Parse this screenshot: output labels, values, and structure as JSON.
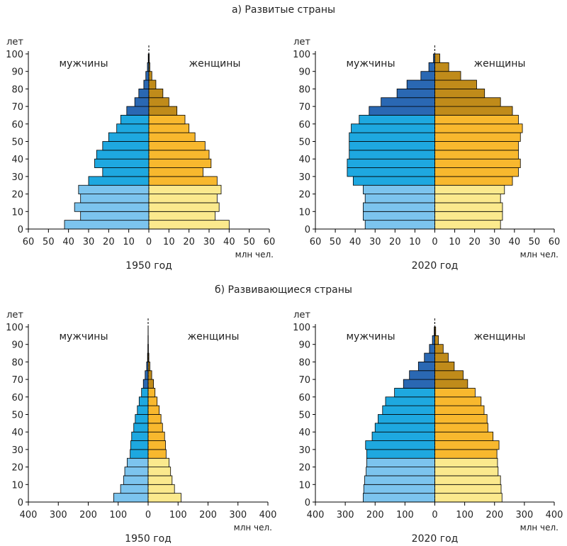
{
  "page": {
    "title_developed": "а) Развитые страны",
    "title_developing": "б) Развивающиеся страны"
  },
  "colors": {
    "male_young": "#7cc4ee",
    "male_adult": "#1ea8e0",
    "male_old": "#2a68b3",
    "female_young": "#fbe98d",
    "female_adult": "#f8b82e",
    "female_old": "#c08b1a"
  },
  "chart_data": [
    {
      "type": "bar",
      "id": "developed-1950",
      "group": "а) Развитые страны",
      "year_label": "1950 год",
      "unit_label": "млн чел.",
      "y_axis_label": "лет",
      "male_label": "мужчины",
      "female_label": "женщины",
      "xlim": [
        -60,
        60
      ],
      "x_ticks": [
        -60,
        -50,
        -40,
        -30,
        -20,
        -10,
        0,
        10,
        20,
        30,
        40,
        50,
        60
      ],
      "x_tick_labels": [
        "60",
        "50",
        "40",
        "30",
        "20",
        "10",
        "0",
        "10",
        "20",
        "30",
        "40",
        "50",
        "60"
      ],
      "y_ticks": [
        0,
        10,
        20,
        30,
        40,
        50,
        60,
        70,
        80,
        90,
        100
      ],
      "y_tick_labels": [
        "0",
        "10",
        "20",
        "30",
        "40",
        "50",
        "60",
        "70",
        "80",
        "90",
        "100"
      ],
      "age_groups": [
        "0-4",
        "5-9",
        "10-14",
        "15-19",
        "20-24",
        "25-29",
        "30-34",
        "35-39",
        "40-44",
        "45-49",
        "50-54",
        "55-59",
        "60-64",
        "65-69",
        "70-74",
        "75-79",
        "80-84",
        "85-89",
        "90-94",
        "95-99"
      ],
      "series": [
        {
          "name": "мужчины",
          "values": [
            42,
            34,
            37,
            34,
            35,
            30,
            23,
            27,
            26,
            23,
            20,
            16,
            14,
            11,
            7,
            5,
            2.5,
            1.5,
            0.7,
            0.3
          ]
        },
        {
          "name": "женщины",
          "values": [
            40,
            33,
            35,
            34,
            36,
            34,
            27,
            31,
            30,
            28,
            23,
            20,
            18,
            14,
            10,
            7,
            3.5,
            1.5,
            0.5,
            0.2
          ]
        }
      ]
    },
    {
      "type": "bar",
      "id": "developed-2020",
      "group": "а) Развитые страны",
      "year_label": "2020 год",
      "unit_label": "млн чел.",
      "y_axis_label": "лет",
      "male_label": "мужчины",
      "female_label": "женщины",
      "xlim": [
        -60,
        60
      ],
      "x_ticks": [
        -60,
        -50,
        -40,
        -30,
        -20,
        -10,
        0,
        10,
        20,
        30,
        40,
        50,
        60
      ],
      "x_tick_labels": [
        "60",
        "50",
        "40",
        "30",
        "20",
        "10",
        "0",
        "10",
        "20",
        "30",
        "40",
        "50",
        "60"
      ],
      "y_ticks": [
        0,
        10,
        20,
        30,
        40,
        50,
        60,
        70,
        80,
        90,
        100
      ],
      "y_tick_labels": [
        "0",
        "10",
        "20",
        "30",
        "40",
        "50",
        "60",
        "70",
        "80",
        "90",
        "100"
      ],
      "age_groups": [
        "0-4",
        "5-9",
        "10-14",
        "15-19",
        "20-24",
        "25-29",
        "30-34",
        "35-39",
        "40-44",
        "45-49",
        "50-54",
        "55-59",
        "60-64",
        "65-69",
        "70-74",
        "75-79",
        "80-84",
        "85-89",
        "90-94",
        "95-99"
      ],
      "series": [
        {
          "name": "мужчины",
          "values": [
            35,
            36,
            36,
            35,
            36,
            41,
            44,
            44,
            43,
            43,
            43,
            42,
            38,
            33,
            27,
            19,
            14,
            7,
            3,
            0.7
          ]
        },
        {
          "name": "женщины",
          "values": [
            33,
            34,
            34,
            33,
            35,
            39,
            42,
            43,
            42,
            42,
            43,
            44,
            42,
            39,
            33,
            25,
            21,
            13,
            7,
            2.5
          ]
        }
      ]
    },
    {
      "type": "bar",
      "id": "developing-1950",
      "group": "б) Развивающиеся страны",
      "year_label": "1950 год",
      "unit_label": "млн чел.",
      "y_axis_label": "лет",
      "male_label": "мужчины",
      "female_label": "женщины",
      "xlim": [
        -400,
        400
      ],
      "x_ticks": [
        -400,
        -300,
        -200,
        -100,
        0,
        100,
        200,
        300,
        400
      ],
      "x_tick_labels": [
        "400",
        "300",
        "200",
        "100",
        "0",
        "100",
        "200",
        "300",
        "400"
      ],
      "y_ticks": [
        0,
        10,
        20,
        30,
        40,
        50,
        60,
        70,
        80,
        90,
        100
      ],
      "y_tick_labels": [
        "0",
        "10",
        "20",
        "30",
        "40",
        "50",
        "60",
        "70",
        "80",
        "90",
        "100"
      ],
      "age_groups": [
        "0-4",
        "5-9",
        "10-14",
        "15-19",
        "20-24",
        "25-29",
        "30-34",
        "35-39",
        "40-44",
        "45-49",
        "50-54",
        "55-59",
        "60-64",
        "65-69",
        "70-74",
        "75-79",
        "80-84",
        "85-89",
        "90-94",
        "95-99"
      ],
      "series": [
        {
          "name": "мужчины",
          "values": [
            115,
            92,
            82,
            78,
            70,
            60,
            58,
            55,
            48,
            43,
            36,
            30,
            22,
            16,
            10,
            5,
            2,
            1,
            0.5,
            0.2
          ]
        },
        {
          "name": "женщины",
          "values": [
            110,
            88,
            80,
            75,
            70,
            60,
            58,
            55,
            48,
            43,
            37,
            30,
            23,
            18,
            12,
            6,
            2.5,
            1,
            0.5,
            0.2
          ]
        }
      ]
    },
    {
      "type": "bar",
      "id": "developing-2020",
      "group": "б) Развивающиеся страны",
      "year_label": "2020 год",
      "unit_label": "млн чел.",
      "y_axis_label": "лет",
      "male_label": "мужчины",
      "female_label": "женщины",
      "xlim": [
        -400,
        400
      ],
      "x_ticks": [
        -400,
        -300,
        -200,
        -100,
        0,
        100,
        200,
        300,
        400
      ],
      "x_tick_labels": [
        "400",
        "300",
        "200",
        "100",
        "0",
        "100",
        "200",
        "300",
        "400"
      ],
      "y_ticks": [
        0,
        10,
        20,
        30,
        40,
        50,
        60,
        70,
        80,
        90,
        100
      ],
      "y_tick_labels": [
        "0",
        "10",
        "20",
        "30",
        "40",
        "50",
        "60",
        "70",
        "80",
        "90",
        "100"
      ],
      "age_groups": [
        "0-4",
        "5-9",
        "10-14",
        "15-19",
        "20-24",
        "25-29",
        "30-34",
        "35-39",
        "40-44",
        "45-49",
        "50-54",
        "55-59",
        "60-64",
        "65-69",
        "70-74",
        "75-79",
        "80-84",
        "85-89",
        "90-94",
        "95-99"
      ],
      "series": [
        {
          "name": "мужчины",
          "values": [
            240,
            238,
            235,
            230,
            228,
            228,
            232,
            210,
            200,
            190,
            175,
            165,
            135,
            105,
            85,
            55,
            35,
            18,
            8,
            2
          ]
        },
        {
          "name": "женщины",
          "values": [
            225,
            222,
            220,
            212,
            210,
            208,
            215,
            195,
            178,
            175,
            165,
            155,
            135,
            110,
            95,
            65,
            45,
            28,
            12,
            3
          ]
        }
      ]
    }
  ]
}
